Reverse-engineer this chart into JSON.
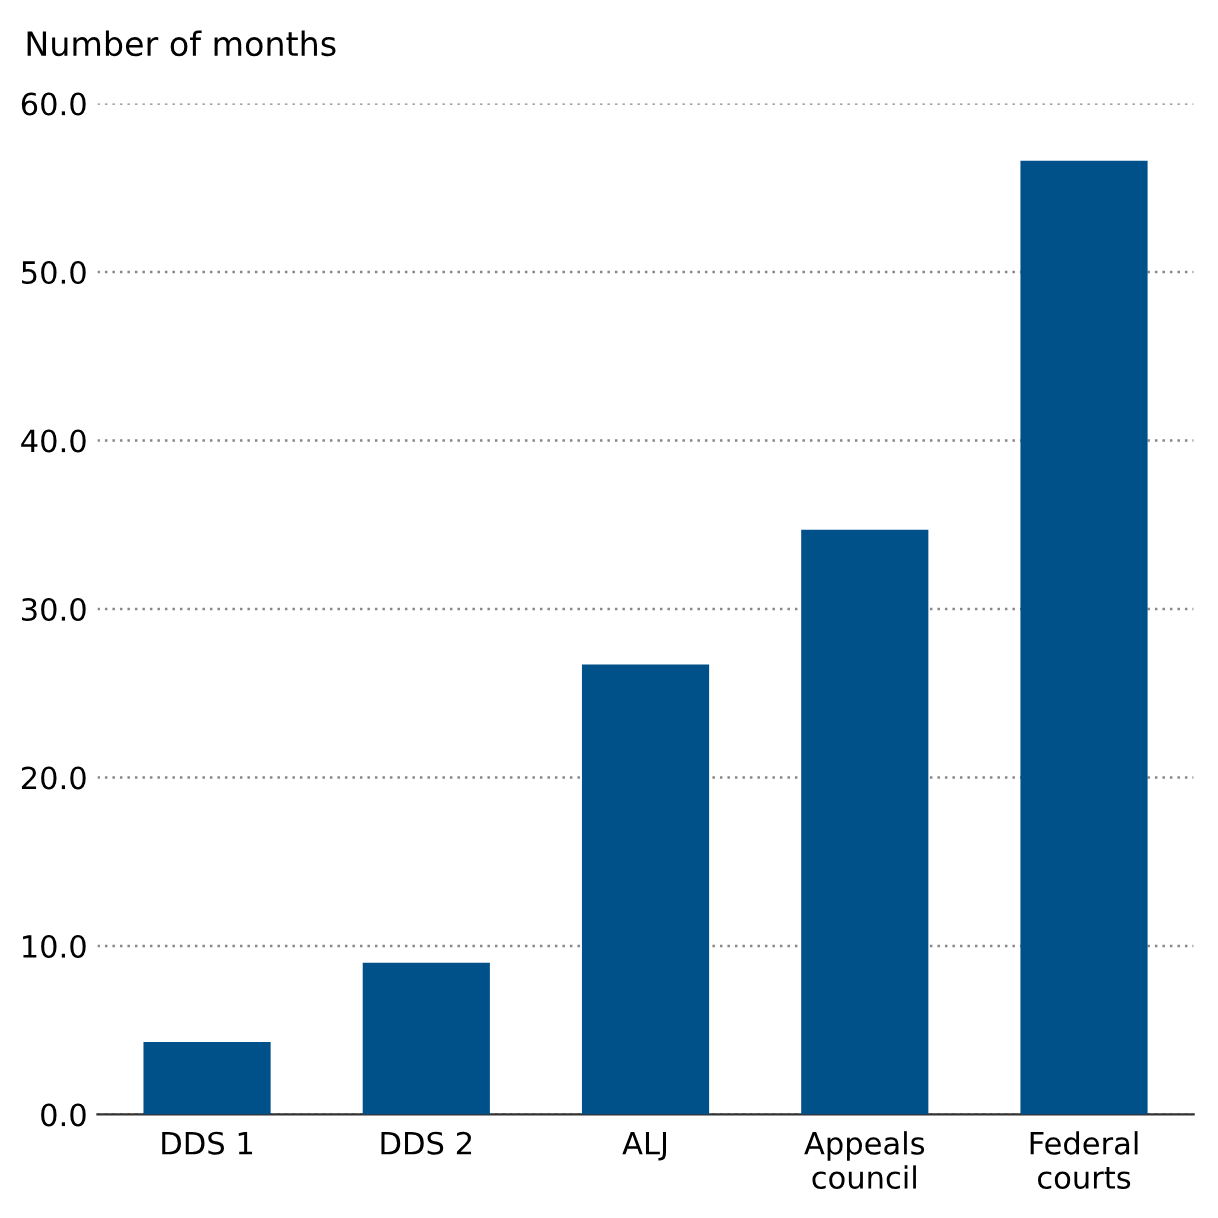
{
  "chart_data": {
    "type": "bar",
    "ylabel": "Number of months",
    "categories": [
      "DDS 1",
      "DDS 2",
      "ALJ",
      "Appeals\ncouncil",
      "Federal\ncourts"
    ],
    "values": [
      4.3,
      9.0,
      26.7,
      34.7,
      56.6
    ],
    "color": "#00508a",
    "ylim": [
      0,
      60
    ],
    "yticks": [
      {
        "value": 0,
        "label": "0.0"
      },
      {
        "value": 10,
        "label": "10.0"
      },
      {
        "value": 20,
        "label": "20.0"
      },
      {
        "value": 30,
        "label": "30.0"
      },
      {
        "value": 40,
        "label": "40.0"
      },
      {
        "value": 50,
        "label": "50.0"
      },
      {
        "value": 60,
        "label": "60.0"
      }
    ],
    "grid": "y"
  }
}
